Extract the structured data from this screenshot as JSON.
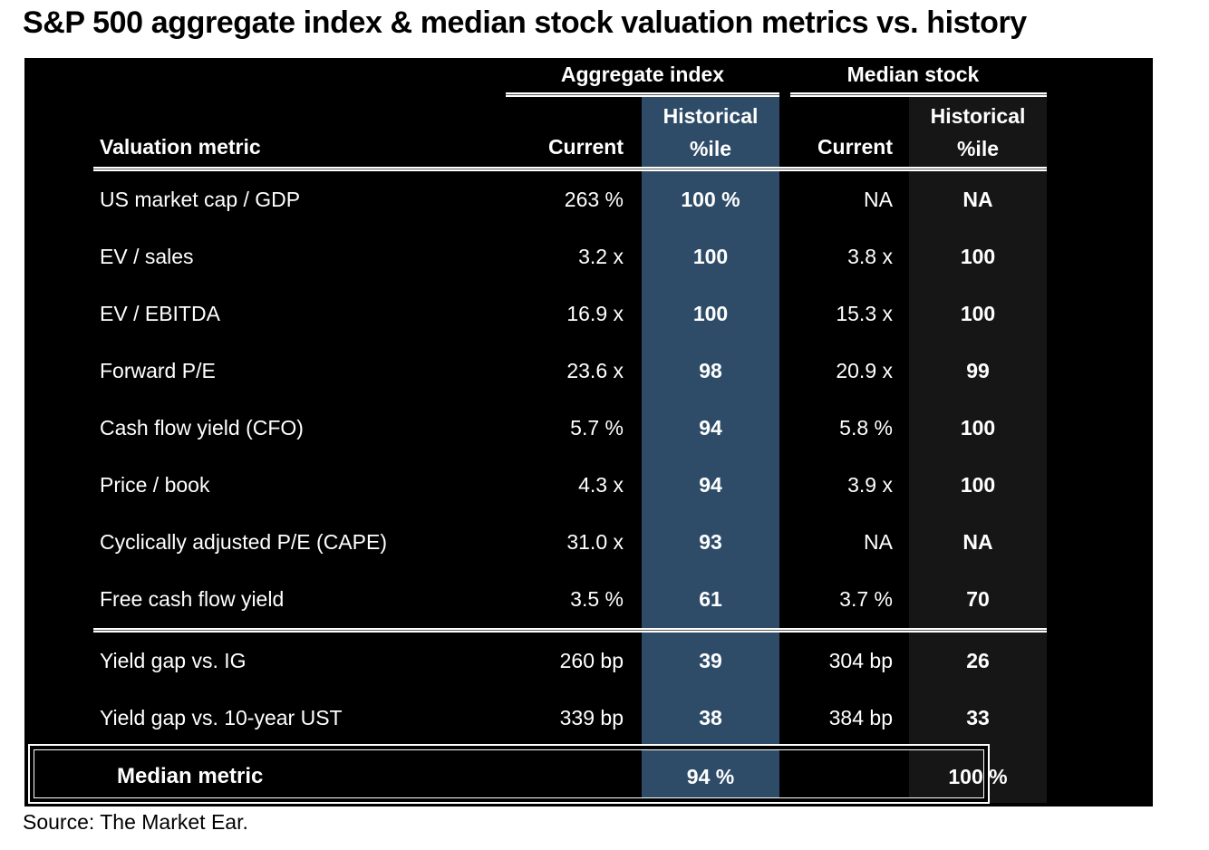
{
  "title": "S&P 500 aggregate index & median stock valuation metrics vs. history",
  "source": "Source: The Market Ear.",
  "colors": {
    "table_background": "#000000",
    "aggregate_pctile_highlight": "#2e4c68",
    "median_pctile_highlight": "#161616",
    "table_text": "#ffffff",
    "title_text": "#000000"
  },
  "chart_data": {
    "type": "table",
    "title": "S&P 500 aggregate index & median stock valuation metrics vs. history",
    "column_groups": [
      {
        "label": "Aggregate index",
        "columns": [
          "Current",
          "Historical %ile"
        ]
      },
      {
        "label": "Median stock",
        "columns": [
          "Current",
          "Historical %ile"
        ]
      }
    ],
    "header": {
      "metric": "Valuation metric",
      "current": "Current",
      "hist_line1": "Historical",
      "hist_line2": "%ile"
    },
    "rows": [
      {
        "metric": "US market cap / GDP",
        "agg_current": "263 %",
        "agg_pctile": "100 %",
        "med_current": "NA",
        "med_pctile": "NA"
      },
      {
        "metric": "EV / sales",
        "agg_current": "3.2 x",
        "agg_pctile": "100",
        "med_current": "3.8 x",
        "med_pctile": "100"
      },
      {
        "metric": "EV / EBITDA",
        "agg_current": "16.9 x",
        "agg_pctile": "100",
        "med_current": "15.3 x",
        "med_pctile": "100"
      },
      {
        "metric": "Forward P/E",
        "agg_current": "23.6 x",
        "agg_pctile": "98",
        "med_current": "20.9 x",
        "med_pctile": "99"
      },
      {
        "metric": "Cash flow yield (CFO)",
        "agg_current": "5.7 %",
        "agg_pctile": "94",
        "med_current": "5.8 %",
        "med_pctile": "100"
      },
      {
        "metric": "Price / book",
        "agg_current": "4.3 x",
        "agg_pctile": "94",
        "med_current": "3.9 x",
        "med_pctile": "100"
      },
      {
        "metric": "Cyclically adjusted P/E (CAPE)",
        "agg_current": "31.0 x",
        "agg_pctile": "93",
        "med_current": "NA",
        "med_pctile": "NA"
      },
      {
        "metric": "Free cash flow yield",
        "agg_current": "3.5 %",
        "agg_pctile": "61",
        "med_current": "3.7 %",
        "med_pctile": "70"
      },
      {
        "metric": "Yield gap vs. IG",
        "agg_current": "260 bp",
        "agg_pctile": "39",
        "med_current": "304 bp",
        "med_pctile": "26"
      },
      {
        "metric": "Yield gap vs. 10-year UST",
        "agg_current": "339 bp",
        "agg_pctile": "38",
        "med_current": "384 bp",
        "med_pctile": "33"
      }
    ],
    "separator_after_row_index": 7,
    "summary_row": {
      "metric": "Median metric",
      "agg_current": "",
      "agg_pctile": "94 %",
      "med_current": "",
      "med_pctile": "100 %"
    },
    "source": "Source: The Market Ear.",
    "layout_hints": {
      "grid": "off",
      "highlighted_columns": [
        "Aggregate index Historical %ile",
        "Median stock Historical %ile"
      ]
    }
  }
}
